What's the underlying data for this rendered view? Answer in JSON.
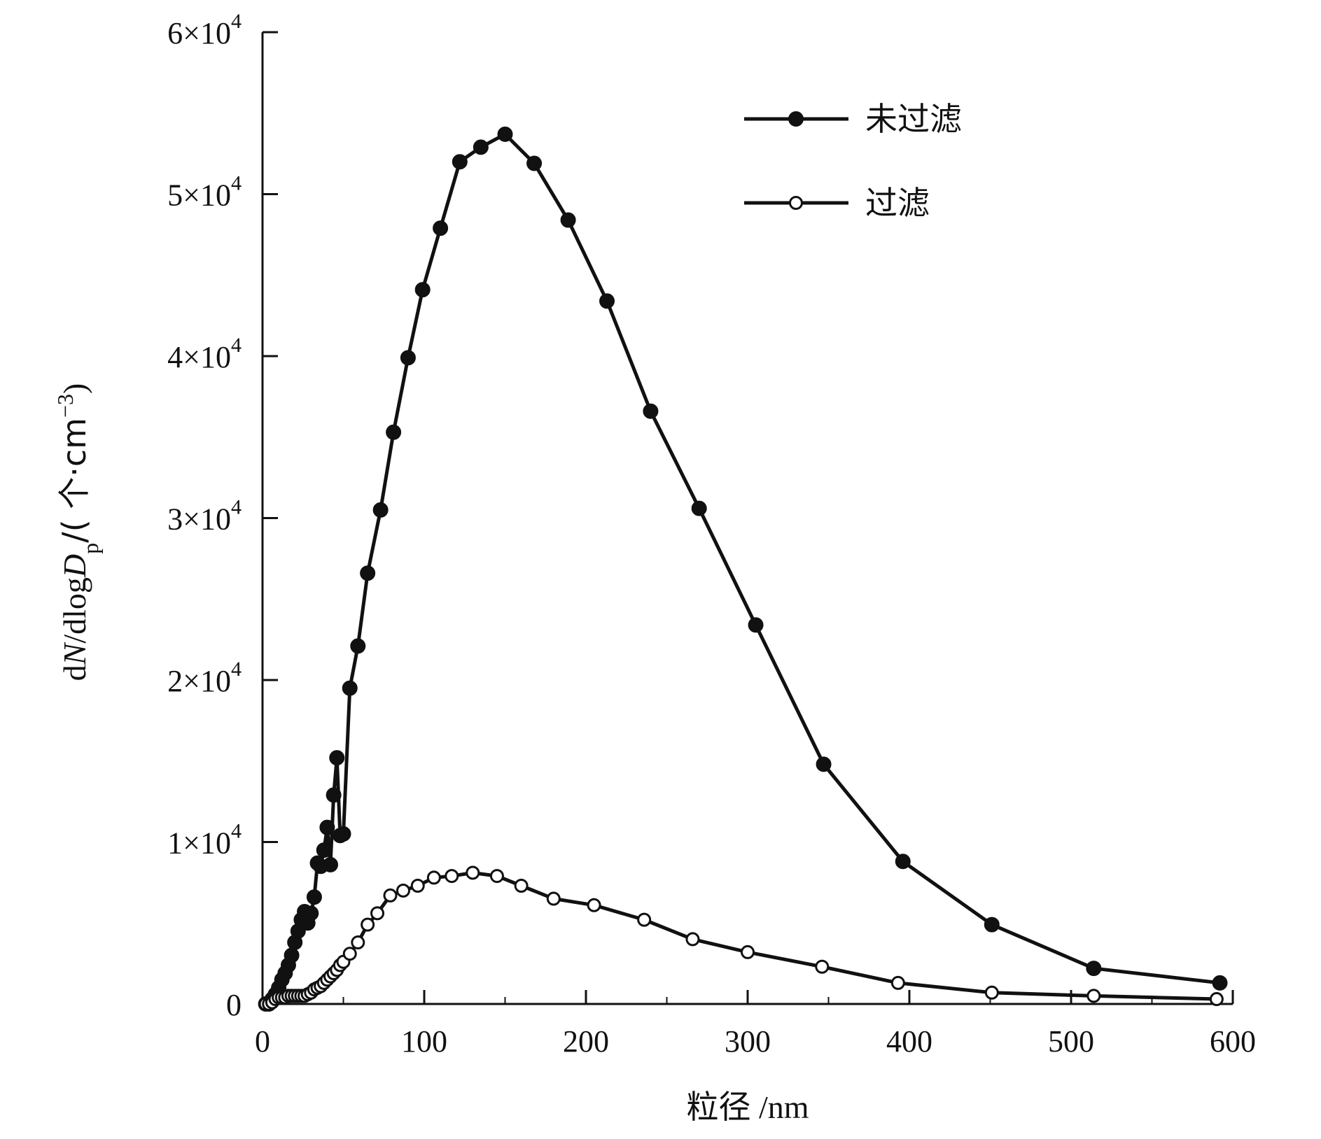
{
  "chart_data": {
    "type": "line",
    "title": "",
    "xlabel": "粒径 /nm",
    "ylabel": "dN/dlogDp/(个·cm⁻³)",
    "ylabel_parts": {
      "d1": "d",
      "N": "N",
      "slash_dlog": "/dlog",
      "D": "D",
      "p": "p",
      "unit_open": "/( 个·cm",
      "exp": "−3",
      "unit_close": ")"
    },
    "xlim": [
      0,
      600
    ],
    "ylim": [
      0,
      60000
    ],
    "x_ticks": [
      0,
      100,
      200,
      300,
      400,
      500,
      600
    ],
    "x_tick_labels": [
      "0",
      "100",
      "200",
      "300",
      "400",
      "500",
      "600"
    ],
    "y_ticks": [
      0,
      10000,
      20000,
      30000,
      40000,
      50000,
      60000
    ],
    "y_tick_labels": [
      {
        "base": "0",
        "exp": ""
      },
      {
        "base": "1×10",
        "exp": "4"
      },
      {
        "base": "2×10",
        "exp": "4"
      },
      {
        "base": "3×10",
        "exp": "4"
      },
      {
        "base": "4×10",
        "exp": "4"
      },
      {
        "base": "5×10",
        "exp": "4"
      },
      {
        "base": "6×10",
        "exp": "4"
      }
    ],
    "legend_position": "top-right",
    "series": [
      {
        "name": "未过滤",
        "marker": "filled-circle",
        "color": "#111111",
        "x": [
          2,
          4,
          6,
          8,
          10,
          12,
          14,
          16,
          18,
          20,
          22,
          24,
          26,
          28,
          30,
          32,
          34,
          36,
          38,
          40,
          42,
          44,
          46,
          48,
          50,
          54,
          59,
          65,
          73,
          81,
          90,
          99,
          110,
          122,
          135,
          150,
          168,
          189,
          213,
          240,
          270,
          305,
          347,
          396,
          451,
          514,
          592
        ],
        "y": [
          0,
          0,
          300,
          600,
          1000,
          1500,
          1900,
          2400,
          3000,
          3800,
          4500,
          5200,
          5700,
          5000,
          5600,
          6600,
          8700,
          8500,
          9500,
          10900,
          8600,
          12900,
          15200,
          10400,
          10500,
          19500,
          22100,
          26600,
          30500,
          35300,
          39900,
          44100,
          47900,
          52000,
          52900,
          53700,
          51900,
          48400,
          43400,
          36600,
          30600,
          23400,
          14800,
          8800,
          4900,
          2200,
          1300
        ]
      },
      {
        "name": "过滤",
        "marker": "open-circle",
        "color": "#111111",
        "x": [
          2,
          4,
          6,
          8,
          10,
          12,
          14,
          16,
          18,
          20,
          22,
          24,
          26,
          28,
          30,
          32,
          34,
          36,
          38,
          40,
          42,
          44,
          46,
          48,
          50,
          54,
          59,
          65,
          71,
          79,
          87,
          96,
          106,
          117,
          130,
          145,
          160,
          180,
          205,
          236,
          266,
          300,
          346,
          393,
          451,
          514,
          590
        ],
        "y": [
          0,
          0,
          100,
          300,
          400,
          400,
          400,
          500,
          500,
          500,
          500,
          500,
          500,
          600,
          700,
          900,
          1000,
          1100,
          1300,
          1500,
          1700,
          1900,
          2100,
          2400,
          2600,
          3100,
          3800,
          4900,
          5600,
          6700,
          7000,
          7300,
          7800,
          7900,
          8100,
          7900,
          7300,
          6500,
          6100,
          5200,
          4000,
          3200,
          2300,
          1300,
          700,
          500,
          300
        ]
      }
    ]
  }
}
